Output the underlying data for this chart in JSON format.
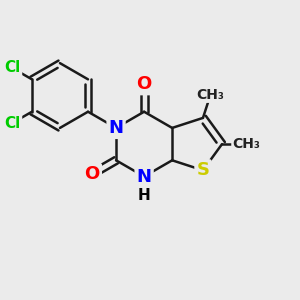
{
  "background_color": "#ebebeb",
  "atom_colors": {
    "N": "#0000ff",
    "O": "#ff0000",
    "S": "#cccc00",
    "Cl": "#00cc00",
    "H": "#000000",
    "C": "#000000"
  },
  "bond_color": "#1a1a1a",
  "bond_width": 1.8,
  "font_size": 13,
  "font_size_small": 11,
  "font_size_methyl": 10
}
